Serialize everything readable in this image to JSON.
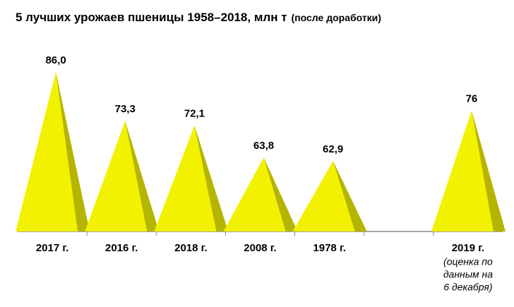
{
  "chart_data": {
    "type": "pyramid",
    "title": "5 лучших урожаев пшеницы 1958–2018, млн т",
    "title_note": "(после доработки)",
    "categories": [
      "2017 г.",
      "2016 г.",
      "2018 г.",
      "2008 г.",
      "1978 г.",
      null,
      "2019 г."
    ],
    "values": [
      86.0,
      73.3,
      72.1,
      63.8,
      62.9,
      null,
      76
    ],
    "value_labels": [
      "86,0",
      "73,3",
      "72,1",
      "63,8",
      "62,9",
      null,
      "76"
    ],
    "annotation": [
      "(оценка по",
      "данным на",
      "6 декабря)"
    ],
    "color": "#f2f200",
    "side_color": "#b5b500",
    "ylim": [
      44.6,
      90
    ]
  }
}
